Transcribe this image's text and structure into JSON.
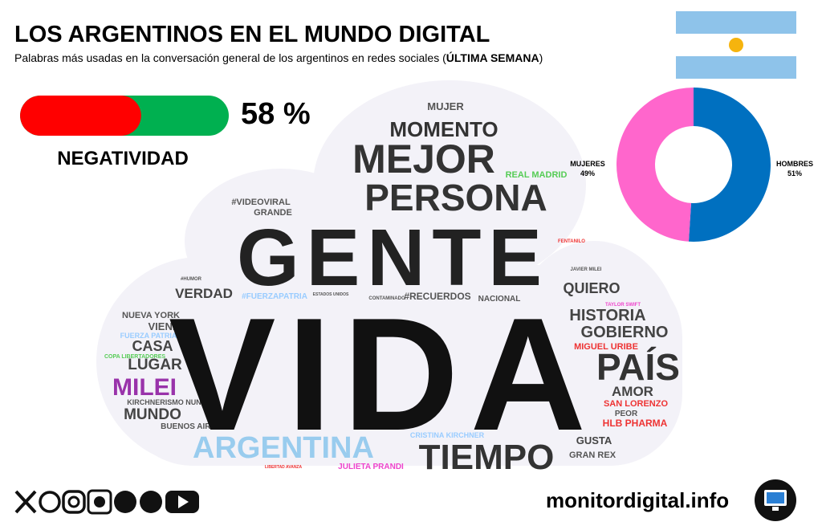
{
  "header": {
    "title": "LOS ARGENTINOS EN EL MUNDO DIGITAL",
    "subtitle_pre": "Palabras más usadas en la conversación general de los argentinos en redes sociales (",
    "subtitle_bold": "ÚLTIMA SEMANA",
    "subtitle_post": ")"
  },
  "negativity": {
    "value": 58,
    "value_label": "58 %",
    "caption": "NEGATIVIDAD",
    "colors": [
      "#ff0000",
      "#00b050"
    ]
  },
  "word_cloud": {
    "words": [
      {
        "text": "MUJER",
        "color": "#555555"
      },
      {
        "text": "MOMENTO",
        "color": "#333333"
      },
      {
        "text": "MEJOR",
        "color": "#333333"
      },
      {
        "text": "REAL MADRID",
        "color": "#55cc55"
      },
      {
        "text": "PERSONA",
        "color": "#333333"
      },
      {
        "text": "#VIDEOVIRAL",
        "color": "#555555"
      },
      {
        "text": "GRANDE",
        "color": "#555555"
      },
      {
        "text": "GENTE",
        "color": "#222222"
      },
      {
        "text": "FENTANILO",
        "color": "#ee3333"
      },
      {
        "text": "JAVIER MILEI",
        "color": "#555555"
      },
      {
        "text": "#HUMOR",
        "color": "#555555"
      },
      {
        "text": "#FUERZAPATRIA",
        "color": "#99ccff"
      },
      {
        "text": "ESTADOS UNIDOS",
        "color": "#555555"
      },
      {
        "text": "CONTAMINADO",
        "color": "#555555"
      },
      {
        "text": "#RECUERDOS",
        "color": "#555555"
      },
      {
        "text": "NACIONAL",
        "color": "#555555"
      },
      {
        "text": "VERDAD",
        "color": "#444444"
      },
      {
        "text": "QUIERO",
        "color": "#444444"
      },
      {
        "text": "TAYLOR SWIFT",
        "color": "#ee44cc"
      },
      {
        "text": "HISTORIA",
        "color": "#444444"
      },
      {
        "text": "GOBIERNO",
        "color": "#444444"
      },
      {
        "text": "MIGUEL URIBE",
        "color": "#ee3333"
      },
      {
        "text": "PAÍS",
        "color": "#333333"
      },
      {
        "text": "AMOR",
        "color": "#444444"
      },
      {
        "text": "SAN LORENZO",
        "color": "#ee3333"
      },
      {
        "text": "PEOR",
        "color": "#555555"
      },
      {
        "text": "HLB PHARMA",
        "color": "#ee3333"
      },
      {
        "text": "NUEVA YORK",
        "color": "#555555"
      },
      {
        "text": "VIENE",
        "color": "#555555"
      },
      {
        "text": "FUERZA PATRIA",
        "color": "#99ccff"
      },
      {
        "text": "CASA",
        "color": "#444444"
      },
      {
        "text": "COPA LIBERTADORES",
        "color": "#55cc55"
      },
      {
        "text": "LUGAR",
        "color": "#444444"
      },
      {
        "text": "MILEI",
        "color": "#9933aa"
      },
      {
        "text": "KIRCHNERISMO NUNCA",
        "color": "#555555"
      },
      {
        "text": "MUNDO",
        "color": "#444444"
      },
      {
        "text": "BUENOS AIRES",
        "color": "#555555"
      },
      {
        "text": "VIDA",
        "color": "#111111"
      },
      {
        "text": "ARGENTINA",
        "color": "#99ccee"
      },
      {
        "text": "CRISTINA KIRCHNER",
        "color": "#99ccff"
      },
      {
        "text": "TIEMPO",
        "color": "#333333"
      },
      {
        "text": "GUSTA",
        "color": "#444444"
      },
      {
        "text": "GRAN REX",
        "color": "#555555"
      },
      {
        "text": "JULIETA PRANDI",
        "color": "#ee44cc"
      },
      {
        "text": "LIBERTAD AVANZA",
        "color": "#ee3333"
      }
    ]
  },
  "chart_data": {
    "type": "pie",
    "donut": true,
    "categories": [
      "MUJERES",
      "HOMBRES"
    ],
    "values": [
      49,
      51
    ],
    "value_labels": [
      "49%",
      "51%"
    ],
    "colors": [
      "#ff66cc",
      "#0070c0"
    ]
  },
  "footer": {
    "site": "monitordigital.info"
  }
}
